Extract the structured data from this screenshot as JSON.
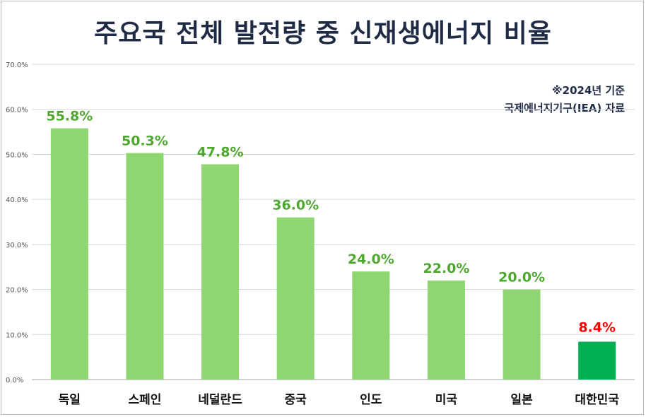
{
  "title": "주요국 전체 발전량 중 신재생에너지 비율",
  "notes": [
    "※2024년 기준",
    "국제에너지기구(IEA) 자료"
  ],
  "colors": {
    "bar": "#8fd672",
    "highlight_bar": "#00b050",
    "label": "#4ea72e",
    "highlight_label": "#ff0000",
    "grid": "#cfd8dc"
  },
  "chart_data": {
    "type": "bar",
    "categories": [
      "독일",
      "스페인",
      "네덜란드",
      "중국",
      "인도",
      "미국",
      "일본",
      "대한민국"
    ],
    "values": [
      55.8,
      50.3,
      47.8,
      36.0,
      24.0,
      22.0,
      20.0,
      8.4
    ],
    "data_labels": [
      "55.8%",
      "50.3%",
      "47.8%",
      "36.0%",
      "24.0%",
      "22.0%",
      "20.0%",
      "8.4%"
    ],
    "highlight_index": 7,
    "ylim": [
      0,
      70
    ],
    "yticks": [
      0,
      10,
      20,
      30,
      40,
      50,
      60,
      70
    ],
    "ytick_labels": [
      "0.0%",
      "10.0%",
      "20.0%",
      "30.0%",
      "40.0%",
      "50.0%",
      "60.0%",
      "70.0%"
    ],
    "grid": true,
    "legend": "none",
    "xlabel": "",
    "ylabel": ""
  }
}
